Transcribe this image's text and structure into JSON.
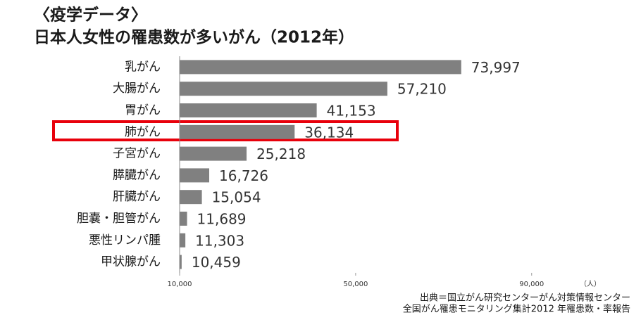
{
  "chart_data": {
    "type": "hbar",
    "title": "〈疫学データ〉",
    "subtitle": "日本人女性の罹患数が多いがん（2012年）",
    "categories": [
      "乳がん",
      "大腸がん",
      "胃がん",
      "肺がん",
      "子宮がん",
      "膵臓がん",
      "肝臓がん",
      "胆嚢・胆管がん",
      "悪性リンパ腫",
      "甲状腺がん"
    ],
    "values": [
      73997,
      57210,
      41153,
      36134,
      25218,
      16726,
      15054,
      11689,
      11303,
      10459
    ],
    "value_labels": [
      "73,997",
      "57,210",
      "41,153",
      "36,134",
      "25,218",
      "16,726",
      "15,054",
      "11,689",
      "11,303",
      "10,459"
    ],
    "color": "#808080",
    "xlim": [
      10000,
      95000
    ],
    "xticks": [
      {
        "value": 10000,
        "label": "10,000"
      },
      {
        "value": 50000,
        "label": "50,000"
      },
      {
        "value": 90000,
        "label": "90,000"
      }
    ],
    "x_label": "（人）",
    "source": [
      "出典＝国立がん研究センターがん対策情報センター",
      "全国がん罹患モニタリング集計2012 年罹患数・率報告"
    ]
  }
}
